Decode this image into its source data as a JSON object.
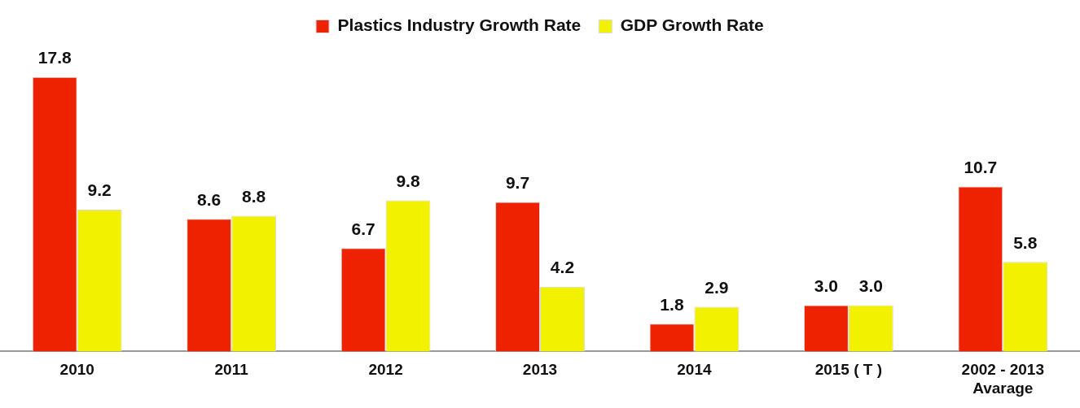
{
  "chart_data": {
    "type": "bar",
    "categories": [
      "2010",
      "2011",
      "2012",
      "2013",
      "2014",
      "2015 ( T )",
      "2002 - 2013\nAvarage"
    ],
    "series": [
      {
        "name": "Plastics Industry Growth Rate",
        "color": "#ee2200",
        "values": [
          17.8,
          8.6,
          6.7,
          9.7,
          1.8,
          3.0,
          10.7
        ],
        "value_labels": [
          "17.8",
          "8.6",
          "6.7",
          "9.7",
          "1.8",
          "3.0",
          "10.7"
        ]
      },
      {
        "name": "GDP Growth Rate",
        "color": "#f2f200",
        "values": [
          9.2,
          8.8,
          9.8,
          4.2,
          2.9,
          3.0,
          5.8
        ],
        "value_labels": [
          "9.2",
          "8.8",
          "9.8",
          "4.2",
          "2.9",
          "3.0",
          "5.8"
        ]
      }
    ],
    "legend": "top",
    "grid": false
  }
}
